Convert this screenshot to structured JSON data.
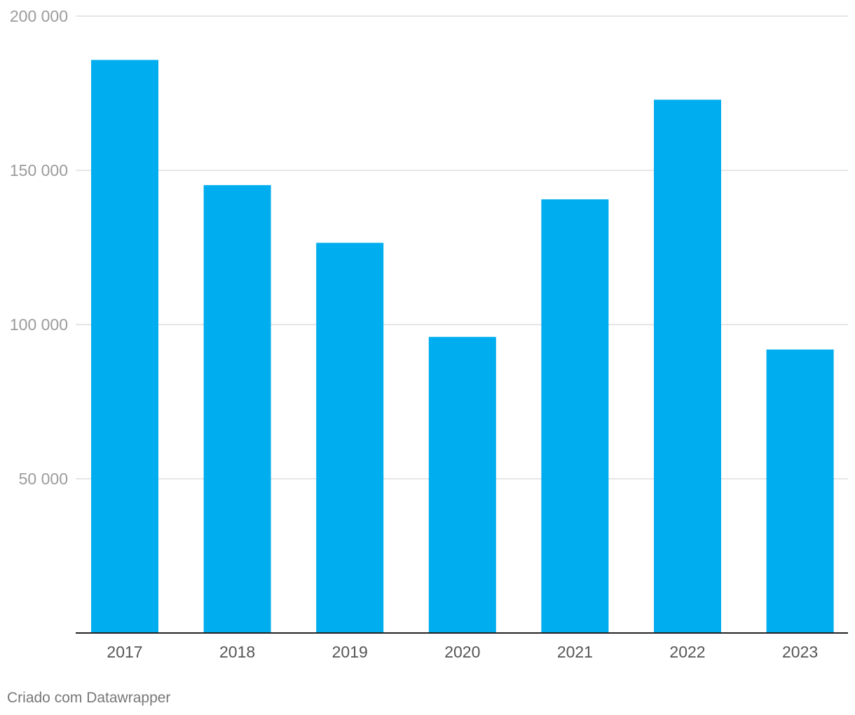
{
  "chart_data": {
    "type": "bar",
    "title": "",
    "xlabel": "",
    "ylabel": "",
    "categories": [
      "2017",
      "2018",
      "2019",
      "2020",
      "2021",
      "2022",
      "2023"
    ],
    "values": [
      185800,
      145200,
      126500,
      96000,
      140600,
      172900,
      91900
    ],
    "ylim": [
      0,
      200000
    ],
    "yticks": [
      50000,
      100000,
      150000,
      200000
    ],
    "ytick_labels": [
      "50 000",
      "100 000",
      "150 000",
      "200 000"
    ],
    "grid": true,
    "bar_color": "#00adee"
  },
  "footer": {
    "credit": "Criado com Datawrapper"
  }
}
